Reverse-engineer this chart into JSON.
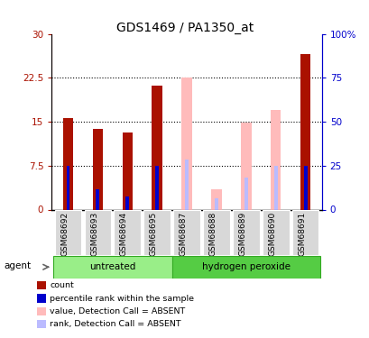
{
  "title": "GDS1469 / PA1350_at",
  "samples": [
    "GSM68692",
    "GSM68693",
    "GSM68694",
    "GSM68695",
    "GSM68687",
    "GSM68688",
    "GSM68689",
    "GSM68690",
    "GSM68691"
  ],
  "count_values": [
    15.6,
    13.8,
    13.2,
    21.2,
    null,
    null,
    null,
    null,
    26.6
  ],
  "rank_values": [
    7.5,
    3.5,
    2.2,
    7.5,
    null,
    null,
    null,
    null,
    7.5
  ],
  "absent_value_values": [
    null,
    null,
    null,
    null,
    22.5,
    3.5,
    14.8,
    17.0,
    null
  ],
  "absent_rank_values": [
    null,
    null,
    null,
    null,
    8.5,
    2.0,
    5.5,
    7.5,
    null
  ],
  "count_bar_width": 0.35,
  "rank_bar_width": 0.12,
  "ylim": [
    0,
    30
  ],
  "yticks": [
    0,
    7.5,
    15,
    22.5,
    30
  ],
  "ytick_labels_left": [
    "0",
    "7.5",
    "15",
    "22.5",
    "30"
  ],
  "ytick_labels_right": [
    "0",
    "25",
    "50",
    "75",
    "100%"
  ],
  "color_count": "#aa1100",
  "color_rank": "#0000cc",
  "color_absent_value": "#ffbbbb",
  "color_absent_rank": "#bbbbff",
  "group_untreated_color": "#99ee88",
  "group_peroxide_color": "#55cc44",
  "group_border_color": "#33aa22",
  "untreated_indices": [
    0,
    1,
    2,
    3
  ],
  "peroxide_indices": [
    4,
    5,
    6,
    7,
    8
  ],
  "legend_items": [
    {
      "label": "count",
      "color": "#aa1100"
    },
    {
      "label": "percentile rank within the sample",
      "color": "#0000cc"
    },
    {
      "label": "value, Detection Call = ABSENT",
      "color": "#ffbbbb"
    },
    {
      "label": "rank, Detection Call = ABSENT",
      "color": "#bbbbff"
    }
  ]
}
